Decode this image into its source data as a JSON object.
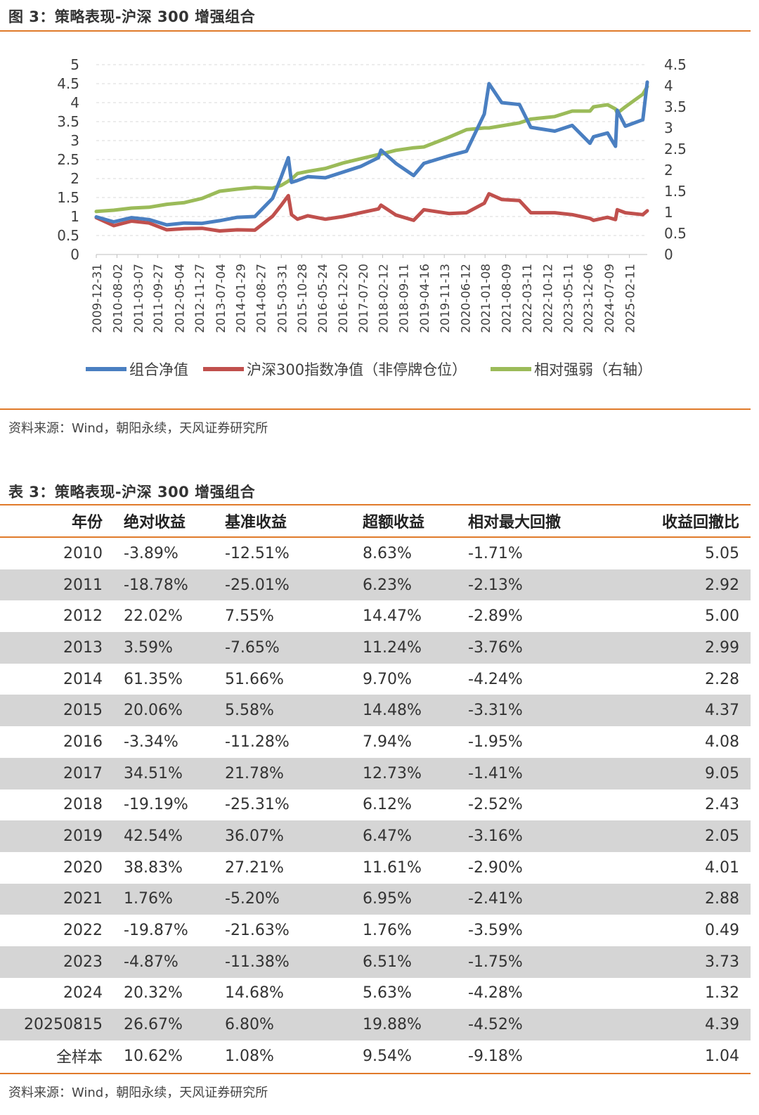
{
  "figure": {
    "title": "图 3：策略表现-沪深 300 增强组合",
    "source": "资料来源：Wind，朝阳永续，天风证券研究所"
  },
  "colors": {
    "accent": "#e07a2a",
    "portfolio": "#4a7fc1",
    "index": "#c0504d",
    "relative": "#9bbb59",
    "stripe": "#d5d5d5"
  },
  "chart_data": {
    "type": "line",
    "title": "",
    "left_axis": {
      "ylim": [
        0,
        5
      ],
      "ticks": [
        "0",
        "0.5",
        "1",
        "1.5",
        "2",
        "2.5",
        "3",
        "3.5",
        "4",
        "4.5",
        "5"
      ]
    },
    "right_axis": {
      "ylim": [
        0,
        4.5
      ],
      "ticks": [
        "0",
        "0.5",
        "1",
        "1.5",
        "2",
        "2.5",
        "3",
        "3.5",
        "4",
        "4.5"
      ]
    },
    "x_range": [
      "2009-12-31",
      "2025-08-15"
    ],
    "x_ticks": [
      "2009-12-31",
      "2010-08-02",
      "2011-03-07",
      "2011-09-27",
      "2012-05-04",
      "2012-11-27",
      "2013-07-04",
      "2014-01-29",
      "2014-08-27",
      "2015-03-31",
      "2015-10-28",
      "2016-05-24",
      "2016-12-20",
      "2017-07-20",
      "2018-02-12",
      "2018-09-11",
      "2019-04-16",
      "2019-11-13",
      "2020-06-12",
      "2021-01-08",
      "2021-08-09",
      "2022-03-11",
      "2022-10-12",
      "2023-05-11",
      "2023-12-06",
      "2024-07-09",
      "2025-02-11"
    ],
    "grid": true,
    "legend_position": "bottom",
    "series": [
      {
        "name": "组合净值",
        "axis": "left",
        "color": "#4a7fc1",
        "x": [
          "2009-12-31",
          "2010-06-30",
          "2010-12-31",
          "2011-06-30",
          "2011-12-31",
          "2012-06-30",
          "2012-12-31",
          "2013-06-30",
          "2013-12-31",
          "2014-06-30",
          "2014-12-31",
          "2015-03-31",
          "2015-06-12",
          "2015-07-15",
          "2015-09-15",
          "2015-12-31",
          "2016-06-30",
          "2016-12-31",
          "2017-06-30",
          "2017-12-31",
          "2018-01-26",
          "2018-06-30",
          "2018-12-31",
          "2019-04-16",
          "2019-12-31",
          "2020-06-30",
          "2020-12-31",
          "2021-02-18",
          "2021-06-30",
          "2021-12-31",
          "2022-04-27",
          "2022-12-31",
          "2023-06-30",
          "2023-12-31",
          "2024-02-05",
          "2024-06-30",
          "2024-09-20",
          "2024-10-08",
          "2024-12-31",
          "2025-06-30",
          "2025-08-15"
        ],
        "y": [
          0.99,
          0.86,
          0.97,
          0.92,
          0.78,
          0.83,
          0.82,
          0.89,
          0.98,
          1.0,
          1.48,
          2.05,
          2.55,
          1.9,
          1.95,
          2.05,
          2.02,
          2.17,
          2.32,
          2.55,
          2.75,
          2.4,
          2.08,
          2.4,
          2.6,
          2.72,
          3.7,
          4.5,
          4.0,
          3.95,
          3.35,
          3.25,
          3.4,
          2.93,
          3.1,
          3.2,
          2.85,
          3.8,
          3.38,
          3.55,
          4.54
        ]
      },
      {
        "name": "沪深300指数净值（非停牌仓位）",
        "axis": "left",
        "color": "#c0504d",
        "x": [
          "2009-12-31",
          "2010-06-30",
          "2010-12-31",
          "2011-06-30",
          "2011-12-31",
          "2012-06-30",
          "2012-12-31",
          "2013-06-30",
          "2013-12-31",
          "2014-06-30",
          "2014-12-31",
          "2015-03-31",
          "2015-06-12",
          "2015-07-15",
          "2015-09-15",
          "2015-12-31",
          "2016-06-30",
          "2016-12-31",
          "2017-06-30",
          "2017-12-31",
          "2018-01-26",
          "2018-06-30",
          "2018-12-31",
          "2019-04-16",
          "2019-12-31",
          "2020-06-30",
          "2020-12-31",
          "2021-02-18",
          "2021-06-30",
          "2021-12-31",
          "2022-04-27",
          "2022-12-31",
          "2023-06-30",
          "2023-12-31",
          "2024-02-05",
          "2024-06-30",
          "2024-09-20",
          "2024-10-08",
          "2024-12-31",
          "2025-06-30",
          "2025-08-15"
        ],
        "y": [
          0.97,
          0.76,
          0.88,
          0.83,
          0.65,
          0.68,
          0.69,
          0.62,
          0.65,
          0.64,
          1.01,
          1.3,
          1.55,
          1.05,
          0.93,
          1.02,
          0.93,
          1.0,
          1.1,
          1.2,
          1.3,
          1.04,
          0.9,
          1.18,
          1.08,
          1.1,
          1.35,
          1.6,
          1.45,
          1.42,
          1.1,
          1.1,
          1.05,
          0.95,
          0.9,
          0.98,
          0.92,
          1.18,
          1.1,
          1.05,
          1.15
        ]
      },
      {
        "name": "相对强弱（右轴）",
        "axis": "right",
        "color": "#9bbb59",
        "x": [
          "2009-12-31",
          "2010-06-30",
          "2010-12-31",
          "2011-06-30",
          "2011-12-31",
          "2012-06-30",
          "2012-12-31",
          "2013-06-30",
          "2013-12-31",
          "2014-06-30",
          "2014-12-31",
          "2015-03-31",
          "2015-06-12",
          "2015-07-15",
          "2015-09-15",
          "2015-12-31",
          "2016-06-30",
          "2016-12-31",
          "2017-06-30",
          "2017-12-31",
          "2018-01-26",
          "2018-06-30",
          "2018-12-31",
          "2019-04-16",
          "2019-12-31",
          "2020-06-30",
          "2020-12-31",
          "2021-02-18",
          "2021-06-30",
          "2021-12-31",
          "2022-04-27",
          "2022-12-31",
          "2023-06-30",
          "2023-12-31",
          "2024-02-05",
          "2024-06-30",
          "2024-09-20",
          "2024-10-08",
          "2024-12-31",
          "2025-06-30",
          "2025-08-15"
        ],
        "y": [
          1.02,
          1.05,
          1.1,
          1.12,
          1.19,
          1.23,
          1.33,
          1.5,
          1.55,
          1.59,
          1.57,
          1.64,
          1.74,
          1.79,
          1.92,
          1.97,
          2.04,
          2.17,
          2.27,
          2.37,
          2.38,
          2.47,
          2.53,
          2.55,
          2.78,
          2.96,
          3.0,
          3.0,
          3.05,
          3.12,
          3.21,
          3.27,
          3.4,
          3.4,
          3.5,
          3.55,
          3.45,
          3.35,
          3.5,
          3.8,
          3.98
        ]
      }
    ]
  },
  "table": {
    "title": "表 3：策略表现-沪深 300 增强组合",
    "headers": [
      "年份",
      "绝对收益",
      "基准收益",
      "超额收益",
      "相对最大回撤",
      "收益回撤比"
    ],
    "rows": [
      [
        "2010",
        "-3.89%",
        "-12.51%",
        "8.63%",
        "-1.71%",
        "5.05"
      ],
      [
        "2011",
        "-18.78%",
        "-25.01%",
        "6.23%",
        "-2.13%",
        "2.92"
      ],
      [
        "2012",
        "22.02%",
        "7.55%",
        "14.47%",
        "-2.89%",
        "5.00"
      ],
      [
        "2013",
        "3.59%",
        "-7.65%",
        "11.24%",
        "-3.76%",
        "2.99"
      ],
      [
        "2014",
        "61.35%",
        "51.66%",
        "9.70%",
        "-4.24%",
        "2.28"
      ],
      [
        "2015",
        "20.06%",
        "5.58%",
        "14.48%",
        "-3.31%",
        "4.37"
      ],
      [
        "2016",
        "-3.34%",
        "-11.28%",
        "7.94%",
        "-1.95%",
        "4.08"
      ],
      [
        "2017",
        "34.51%",
        "21.78%",
        "12.73%",
        "-1.41%",
        "9.05"
      ],
      [
        "2018",
        "-19.19%",
        "-25.31%",
        "6.12%",
        "-2.52%",
        "2.43"
      ],
      [
        "2019",
        "42.54%",
        "36.07%",
        "6.47%",
        "-3.16%",
        "2.05"
      ],
      [
        "2020",
        "38.83%",
        "27.21%",
        "11.61%",
        "-2.90%",
        "4.01"
      ],
      [
        "2021",
        "1.76%",
        "-5.20%",
        "6.95%",
        "-2.41%",
        "2.88"
      ],
      [
        "2022",
        "-19.87%",
        "-21.63%",
        "1.76%",
        "-3.59%",
        "0.49"
      ],
      [
        "2023",
        "-4.87%",
        "-11.38%",
        "6.51%",
        "-1.75%",
        "3.73"
      ],
      [
        "2024",
        "20.32%",
        "14.68%",
        "5.63%",
        "-4.28%",
        "1.32"
      ],
      [
        "20250815",
        "26.67%",
        "6.80%",
        "19.88%",
        "-4.52%",
        "4.39"
      ],
      [
        "全样本",
        "10.62%",
        "1.08%",
        "9.54%",
        "-9.18%",
        "1.04"
      ]
    ],
    "source": "资料来源：Wind，朝阳永续，天风证券研究所"
  }
}
